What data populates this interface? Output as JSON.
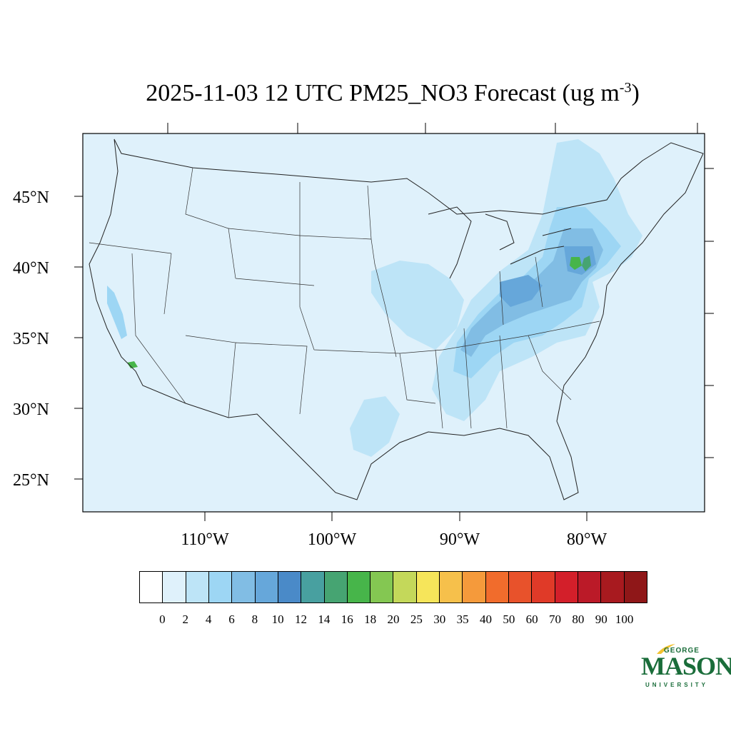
{
  "title": {
    "main": "2025-11-03 12 UTC PM25_NO3 Forecast (ug m",
    "exponent": "-3",
    "close": ")"
  },
  "map": {
    "background_color": "#dff1fb",
    "lat_labels": [
      "45°N",
      "40°N",
      "35°N",
      "30°N",
      "25°N"
    ],
    "lon_labels": [
      "110°W",
      "100°W",
      "90°W",
      "80°W"
    ]
  },
  "colorbar": {
    "colors": [
      "#ffffff",
      "#dff1fb",
      "#bde4f7",
      "#9dd6f4",
      "#81bde4",
      "#66a7da",
      "#4a8ac8",
      "#48a0a0",
      "#46a472",
      "#47b54a",
      "#84c752",
      "#c4d85a",
      "#f6e55a",
      "#f6c04b",
      "#f59a3b",
      "#f16c2c",
      "#e8522b",
      "#e03a28",
      "#d31f2a",
      "#bb1a28",
      "#a81a1f",
      "#8f1718"
    ],
    "labels": [
      "0",
      "2",
      "4",
      "6",
      "8",
      "10",
      "12",
      "14",
      "16",
      "18",
      "20",
      "25",
      "30",
      "35",
      "40",
      "50",
      "60",
      "70",
      "80",
      "90",
      "100"
    ]
  },
  "logo": {
    "top": "GEORGE",
    "name": "MASON",
    "bottom": "UNIVERSITY"
  }
}
